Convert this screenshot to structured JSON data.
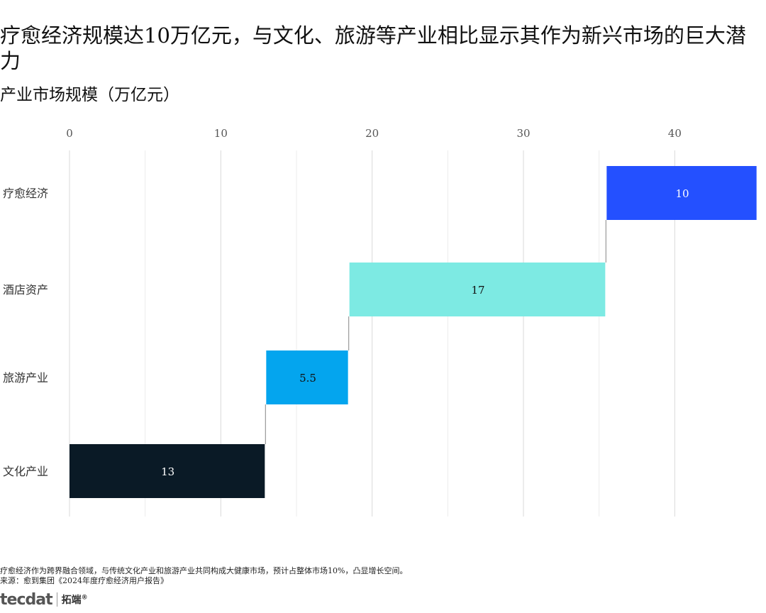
{
  "title": "疗愈经济规模达10万亿元，与文化、旅游等产业相比显示其作为新兴市场的巨大潜力",
  "subtitle": "产业市场规模（万亿元）",
  "notes": {
    "line1": "疗愈经济作为跨界融合领域，与传统文化产业和旅游产业共同构成大健康市场，预计占整体市场10%，凸显增长空间。",
    "line2": "来源：愈到集团《2024年度疗愈经济用户报告》"
  },
  "logo": {
    "mark": "tecdat",
    "cn": "拓端",
    "reg": "®"
  },
  "chart_data": {
    "type": "bar",
    "subtype": "waterfall-horizontal",
    "categories": [
      "文化产业",
      "旅游产业",
      "酒店资产",
      "疗愈经济"
    ],
    "values": [
      13,
      5.5,
      17,
      10
    ],
    "value_labels": [
      "13",
      "5.5",
      "17",
      "10"
    ],
    "colors": [
      "#0a1a26",
      "#04a5ee",
      "#7deae3",
      "#2450ff"
    ],
    "label_colors": [
      "#ffffff",
      "#111111",
      "#111111",
      "#ffffff"
    ],
    "xlim": [
      0,
      45
    ],
    "xticks": [
      0,
      10,
      20,
      30,
      40
    ],
    "axis_position": "top",
    "grid": true,
    "legend": "none"
  }
}
